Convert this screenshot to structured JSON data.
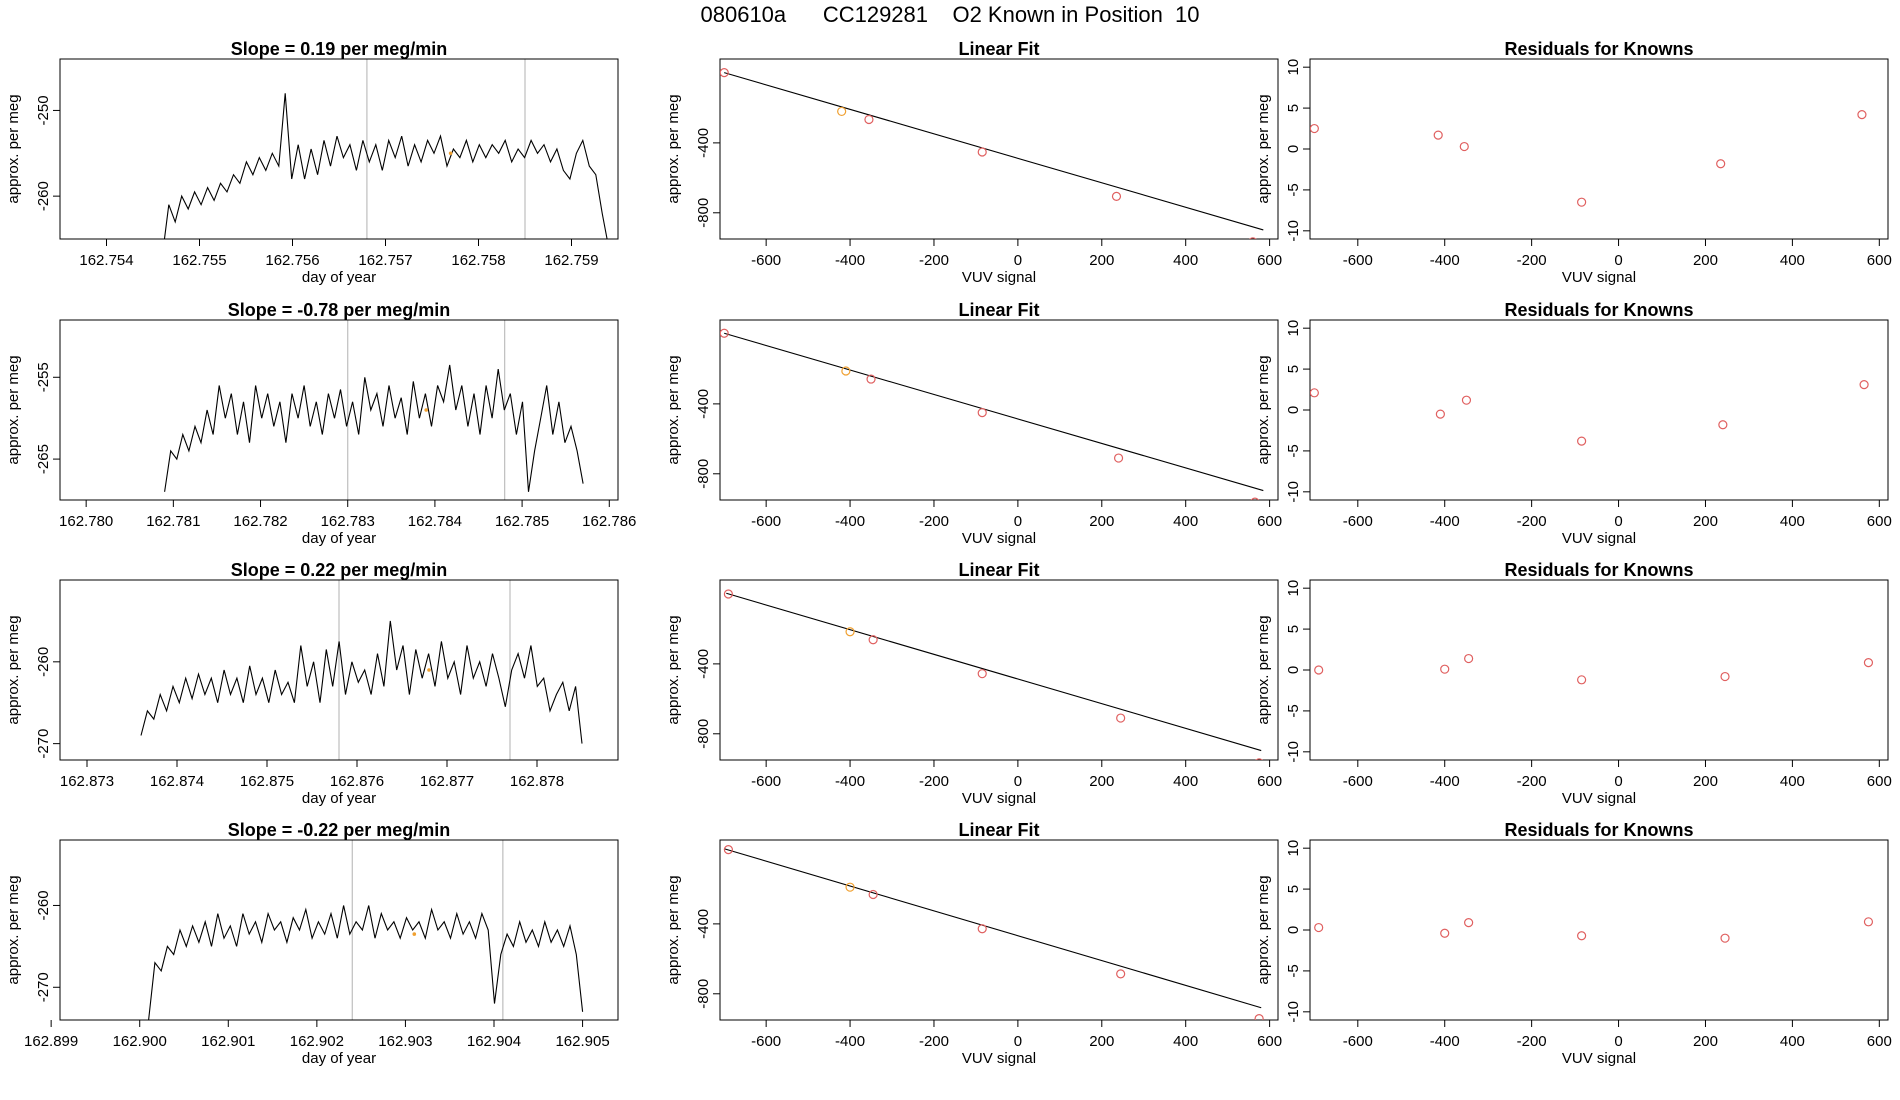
{
  "title": "080610a      CC129281    O2 Known in Position  10",
  "colors": {
    "line": "#000000",
    "vline": "#bebebe",
    "point": "#e06060",
    "highlight": "#f0a030",
    "axis": "#000000"
  },
  "chart_data": [
    {
      "type": "line",
      "title": "Slope =  0.19  per meg/min",
      "xlabel": "day of year",
      "ylabel": "approx. per meg",
      "xlim": [
        162.7535,
        162.7595
      ],
      "ylim": [
        -265,
        -244
      ],
      "xticks": [
        162.754,
        162.755,
        162.756,
        162.757,
        162.758,
        162.759
      ],
      "xtick_labels": [
        "162.754",
        "162.755",
        "162.756",
        "162.757",
        "162.758",
        "162.759"
      ],
      "yticks": [
        -250,
        -260
      ],
      "ytick_labels": [
        "-250",
        "-260"
      ],
      "vlines": [
        162.7568,
        162.7585
      ],
      "x_start": 162.7546,
      "x_end": 162.7594,
      "y": [
        -267,
        -261,
        -263,
        -260,
        -261.5,
        -259.5,
        -261,
        -259,
        -260.5,
        -258.5,
        -259.5,
        -257.5,
        -258.5,
        -256,
        -257.5,
        -255.5,
        -257,
        -255,
        -256.5,
        -248,
        -258,
        -254,
        -258,
        -254.5,
        -257.5,
        -253.5,
        -256.5,
        -253,
        -255.5,
        -254,
        -257,
        -253.5,
        -256,
        -254,
        -257,
        -253.5,
        -255.5,
        -253,
        -256.5,
        -254,
        -256,
        -253.5,
        -255,
        -253,
        -256.5,
        -254.5,
        -255.5,
        -253.5,
        -256,
        -254,
        -255.5,
        -254,
        -255,
        -253.5,
        -256,
        -254.5,
        -255.5,
        -253.5,
        -255,
        -254,
        -256,
        -254.5,
        -257,
        -258,
        -255,
        -253.5,
        -256.5,
        -257.5,
        -262,
        -266
      ],
      "highlight_point": {
        "x": 162.7577,
        "y": -255
      }
    },
    {
      "type": "line",
      "title": "Slope =  -0.78  per meg/min",
      "xlabel": "day of year",
      "ylabel": "approx. per meg",
      "xlim": [
        162.7797,
        162.7861
      ],
      "ylim": [
        -270,
        -248
      ],
      "xticks": [
        162.78,
        162.781,
        162.782,
        162.783,
        162.784,
        162.785,
        162.786
      ],
      "xtick_labels": [
        "162.780",
        "162.781",
        "162.782",
        "162.783",
        "162.784",
        "162.785",
        "162.786"
      ],
      "yticks": [
        -255,
        -265
      ],
      "ytick_labels": [
        "-255",
        "-265"
      ],
      "vlines": [
        162.783,
        162.7848
      ],
      "x_start": 162.7809,
      "x_end": 162.7857,
      "y": [
        -269,
        -264,
        -265,
        -262,
        -264,
        -261,
        -263,
        -259,
        -262,
        -256,
        -260,
        -257,
        -262,
        -258,
        -263,
        -256,
        -260,
        -257,
        -261,
        -258,
        -263,
        -257,
        -260,
        -256,
        -261,
        -258,
        -262,
        -257,
        -260,
        -256.5,
        -261,
        -258,
        -262,
        -255,
        -259,
        -257,
        -261,
        -256,
        -260,
        -257.5,
        -262,
        -255.5,
        -260,
        -257,
        -261,
        -256,
        -258,
        -253.5,
        -259,
        -256,
        -261,
        -257,
        -262,
        -256,
        -260,
        -254,
        -259,
        -257,
        -262,
        -258,
        -269,
        -264,
        -260,
        -256,
        -262,
        -258,
        -263,
        -261,
        -264,
        -268
      ],
      "highlight_point": {
        "x": 162.7839,
        "y": -259
      }
    },
    {
      "type": "line",
      "title": "Slope =  0.22  per meg/min",
      "xlabel": "day of year",
      "ylabel": "approx. per meg",
      "xlim": [
        162.8727,
        162.8789
      ],
      "ylim": [
        -272,
        -250
      ],
      "xticks": [
        162.873,
        162.874,
        162.875,
        162.876,
        162.877,
        162.878
      ],
      "xtick_labels": [
        "162.873",
        "162.874",
        "162.875",
        "162.876",
        "162.877",
        "162.878"
      ],
      "yticks": [
        -260,
        -270
      ],
      "ytick_labels": [
        "-260",
        "-270"
      ],
      "vlines": [
        162.8758,
        162.8777
      ],
      "x_start": 162.8736,
      "x_end": 162.8785,
      "y": [
        -269,
        -266,
        -267,
        -264,
        -266,
        -263,
        -265,
        -262,
        -264.5,
        -261.5,
        -264,
        -262,
        -265,
        -261,
        -264,
        -262,
        -265,
        -260.5,
        -264,
        -262,
        -265,
        -261,
        -264,
        -262.5,
        -265,
        -258,
        -263,
        -260,
        -265,
        -258.5,
        -263,
        -257.5,
        -264,
        -260,
        -262.5,
        -261,
        -264,
        -259,
        -263,
        -255,
        -261,
        -258,
        -264,
        -258.5,
        -262,
        -259,
        -263,
        -257.5,
        -262,
        -260,
        -264,
        -258,
        -262,
        -260,
        -263,
        -259,
        -262,
        -265.5,
        -261,
        -259,
        -262,
        -258,
        -263,
        -262,
        -266,
        -264,
        -262.5,
        -266,
        -263,
        -270
      ],
      "highlight_point": {
        "x": 162.8768,
        "y": -261
      }
    },
    {
      "type": "line",
      "title": "Slope =  -0.22  per meg/min",
      "xlabel": "day of year",
      "ylabel": "approx. per meg",
      "xlim": [
        162.8991,
        162.9054
      ],
      "ylim": [
        -274,
        -252
      ],
      "xticks": [
        162.899,
        162.9,
        162.901,
        162.902,
        162.903,
        162.904,
        162.905
      ],
      "xtick_labels": [
        "162.899",
        "162.900",
        "162.901",
        "162.902",
        "162.903",
        "162.904",
        "162.905"
      ],
      "yticks": [
        -260,
        -270
      ],
      "ytick_labels": [
        "-260",
        "-270"
      ],
      "vlines": [
        162.9024,
        162.9041
      ],
      "x_start": 162.9001,
      "x_end": 162.905,
      "y": [
        -274,
        -267,
        -268,
        -265,
        -266,
        -263,
        -265,
        -262.5,
        -264.5,
        -262,
        -265,
        -261,
        -264,
        -262.5,
        -265,
        -261,
        -263.5,
        -262,
        -264.5,
        -261,
        -263,
        -262,
        -264.5,
        -261.5,
        -263,
        -260.5,
        -264,
        -262,
        -263.5,
        -261,
        -264,
        -260,
        -263.5,
        -262,
        -263,
        -260,
        -264,
        -261,
        -263,
        -262,
        -264,
        -261.5,
        -263,
        -262,
        -264,
        -260.5,
        -263,
        -262,
        -264,
        -261,
        -263.5,
        -262,
        -264,
        -261,
        -263,
        -272,
        -266,
        -263.5,
        -265,
        -262,
        -264.5,
        -263,
        -265,
        -262,
        -264.5,
        -263,
        -265,
        -262.5,
        -266,
        -273
      ],
      "highlight_point": {
        "x": 162.9031,
        "y": -263.5
      }
    },
    {
      "type": "scatter",
      "title": "Linear Fit",
      "xlabel": "VUV signal",
      "ylabel": "approx. per meg",
      "xlim": [
        -710,
        620
      ],
      "ylim": [
        -950,
        80
      ],
      "xticks": [
        -600,
        -400,
        -200,
        0,
        200,
        400,
        600
      ],
      "xtick_labels": [
        "-600",
        "-400",
        "-200",
        "0",
        "200",
        "400",
        "600"
      ],
      "yticks": [
        -400,
        -800
      ],
      "ytick_labels": [
        "-400",
        "-800"
      ],
      "fit_line": [
        [
          -700,
          2
        ],
        [
          585,
          -898
        ]
      ],
      "points": [
        [
          -700,
          2
        ],
        [
          -420,
          -220
        ],
        [
          -355,
          -266
        ],
        [
          -85,
          -452
        ],
        [
          235,
          -706
        ],
        [
          560,
          -966
        ]
      ],
      "highlight_index": 1
    },
    {
      "type": "scatter",
      "title": "Linear Fit",
      "xlabel": "VUV signal",
      "ylabel": "approx. per meg",
      "xlim": [
        -710,
        620
      ],
      "ylim": [
        -950,
        80
      ],
      "xticks": [
        -600,
        -400,
        -200,
        0,
        200,
        400,
        600
      ],
      "xtick_labels": [
        "-600",
        "-400",
        "-200",
        "0",
        "200",
        "400",
        "600"
      ],
      "yticks": [
        -400,
        -800
      ],
      "ytick_labels": [
        "-400",
        "-800"
      ],
      "fit_line": [
        [
          -700,
          4
        ],
        [
          585,
          -896
        ]
      ],
      "points": [
        [
          -700,
          4
        ],
        [
          -410,
          -212
        ],
        [
          -350,
          -258
        ],
        [
          -85,
          -450
        ],
        [
          240,
          -710
        ],
        [
          565,
          -962
        ]
      ],
      "highlight_index": 1
    },
    {
      "type": "scatter",
      "title": "Linear Fit",
      "xlabel": "VUV signal",
      "ylabel": "approx. per meg",
      "xlim": [
        -710,
        620
      ],
      "ylim": [
        -950,
        80
      ],
      "xticks": [
        -600,
        -400,
        -200,
        0,
        200,
        400,
        600
      ],
      "xtick_labels": [
        "-600",
        "-400",
        "-200",
        "0",
        "200",
        "400",
        "600"
      ],
      "yticks": [
        -400,
        -800
      ],
      "ytick_labels": [
        "-400",
        "-800"
      ],
      "fit_line": [
        [
          -695,
          4
        ],
        [
          580,
          -896
        ]
      ],
      "points": [
        [
          -690,
          0
        ],
        [
          -400,
          -216
        ],
        [
          -345,
          -262
        ],
        [
          -85,
          -456
        ],
        [
          245,
          -710
        ],
        [
          575,
          -966
        ]
      ],
      "highlight_index": 1
    },
    {
      "type": "scatter",
      "title": "Linear Fit",
      "xlabel": "VUV signal",
      "ylabel": "approx. per meg",
      "xlim": [
        -710,
        620
      ],
      "ylim": [
        -950,
        80
      ],
      "xticks": [
        -600,
        -400,
        -200,
        0,
        200,
        400,
        600
      ],
      "xtick_labels": [
        "-600",
        "-400",
        "-200",
        "0",
        "200",
        "400",
        "600"
      ],
      "yticks": [
        -400,
        -800
      ],
      "ytick_labels": [
        "-400",
        "-800"
      ],
      "fit_line": [
        [
          -700,
          30
        ],
        [
          580,
          -880
        ]
      ],
      "points": [
        [
          -690,
          25
        ],
        [
          -400,
          -190
        ],
        [
          -345,
          -232
        ],
        [
          -85,
          -428
        ],
        [
          245,
          -686
        ],
        [
          575,
          -942
        ]
      ],
      "highlight_index": 1
    },
    {
      "type": "scatter",
      "title": "Residuals for Knowns",
      "xlabel": "VUV signal",
      "ylabel": "approx. per meg",
      "xlim": [
        -710,
        620
      ],
      "ylim": [
        -11,
        11
      ],
      "xticks": [
        -600,
        -400,
        -200,
        0,
        200,
        400,
        600
      ],
      "xtick_labels": [
        "-600",
        "-400",
        "-200",
        "0",
        "200",
        "400",
        "600"
      ],
      "yticks": [
        10,
        5,
        0,
        -5,
        -10
      ],
      "ytick_labels": [
        "10",
        "5",
        "0",
        "-5",
        "-10"
      ],
      "points": [
        [
          -700,
          2.5
        ],
        [
          -415,
          1.7
        ],
        [
          -355,
          0.3
        ],
        [
          -85,
          -6.5
        ],
        [
          235,
          -1.8
        ],
        [
          560,
          4.2
        ]
      ]
    },
    {
      "type": "scatter",
      "title": "Residuals for Knowns",
      "xlabel": "VUV signal",
      "ylabel": "approx. per meg",
      "xlim": [
        -710,
        620
      ],
      "ylim": [
        -11,
        11
      ],
      "xticks": [
        -600,
        -400,
        -200,
        0,
        200,
        400,
        600
      ],
      "xtick_labels": [
        "-600",
        "-400",
        "-200",
        "0",
        "200",
        "400",
        "600"
      ],
      "yticks": [
        10,
        5,
        0,
        -5,
        -10
      ],
      "ytick_labels": [
        "10",
        "5",
        "0",
        "-5",
        "-10"
      ],
      "points": [
        [
          -700,
          2.1
        ],
        [
          -410,
          -0.5
        ],
        [
          -350,
          1.2
        ],
        [
          -85,
          -3.8
        ],
        [
          240,
          -1.8
        ],
        [
          565,
          3.1
        ]
      ]
    },
    {
      "type": "scatter",
      "title": "Residuals for Knowns",
      "xlabel": "VUV signal",
      "ylabel": "approx. per meg",
      "xlim": [
        -710,
        620
      ],
      "ylim": [
        -11,
        11
      ],
      "xticks": [
        -600,
        -400,
        -200,
        0,
        200,
        400,
        600
      ],
      "xtick_labels": [
        "-600",
        "-400",
        "-200",
        "0",
        "200",
        "400",
        "600"
      ],
      "yticks": [
        10,
        5,
        0,
        -5,
        -10
      ],
      "ytick_labels": [
        "10",
        "5",
        "0",
        "-5",
        "-10"
      ],
      "points": [
        [
          -690,
          0
        ],
        [
          -400,
          0.1
        ],
        [
          -345,
          1.4
        ],
        [
          -85,
          -1.2
        ],
        [
          245,
          -0.8
        ],
        [
          575,
          0.9
        ]
      ]
    },
    {
      "type": "scatter",
      "title": "Residuals for Knowns",
      "xlabel": "VUV signal",
      "ylabel": "approx. per meg",
      "xlim": [
        -710,
        620
      ],
      "ylim": [
        -11,
        11
      ],
      "xticks": [
        -600,
        -400,
        -200,
        0,
        200,
        400,
        600
      ],
      "xtick_labels": [
        "-600",
        "-400",
        "-200",
        "0",
        "200",
        "400",
        "600"
      ],
      "yticks": [
        10,
        5,
        0,
        -5,
        -10
      ],
      "ytick_labels": [
        "10",
        "5",
        "0",
        "-5",
        "-10"
      ],
      "points": [
        [
          -690,
          0.3
        ],
        [
          -400,
          -0.4
        ],
        [
          -345,
          0.9
        ],
        [
          -85,
          -0.7
        ],
        [
          245,
          -1
        ],
        [
          575,
          1
        ]
      ]
    }
  ]
}
